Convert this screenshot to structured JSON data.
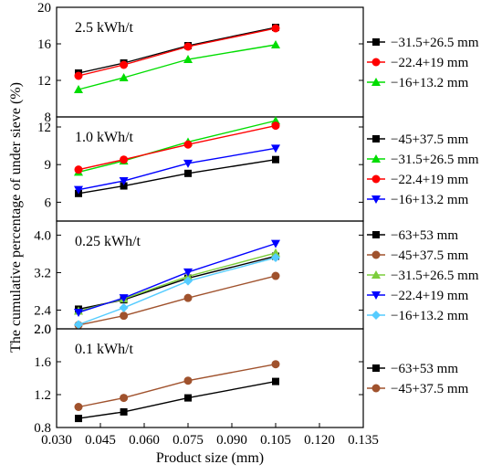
{
  "chart_data": {
    "type": "line",
    "xlabel": "Product size (mm)",
    "ylabel": "The cumulative percentage of under sieve (%)",
    "xlim": [
      0.03,
      0.135
    ],
    "x_ticks": [
      "0.030",
      "0.045",
      "0.060",
      "0.075",
      "0.090",
      "0.105",
      "0.120",
      "0.135"
    ],
    "x": [
      0.0375,
      0.053,
      0.075,
      0.105
    ],
    "panels": [
      {
        "label": "2.5 kWh/t",
        "ylim": [
          8,
          20
        ],
        "y_ticks": [
          "8",
          "12",
          "16",
          "20"
        ],
        "series": [
          {
            "name": "−31.5+26.5 mm",
            "color": "#000000",
            "marker": "square",
            "values": [
              12.8,
              13.9,
              15.8,
              17.8
            ]
          },
          {
            "name": "−22.4+19 mm",
            "color": "#ff0000",
            "marker": "circle",
            "values": [
              12.5,
              13.7,
              15.7,
              17.7
            ]
          },
          {
            "name": "−16+13.2 mm",
            "color": "#00dd00",
            "marker": "triangle-up",
            "values": [
              11.0,
              12.3,
              14.3,
              15.9
            ]
          }
        ]
      },
      {
        "label": "1.0 kWh/t",
        "ylim": [
          4.5,
          12.8
        ],
        "y_ticks": [
          "6",
          "9",
          "12"
        ],
        "series": [
          {
            "name": "−45+37.5 mm",
            "color": "#000000",
            "marker": "square",
            "values": [
              6.7,
              7.3,
              8.3,
              9.4
            ]
          },
          {
            "name": "−31.5+26.5 mm",
            "color": "#00dd00",
            "marker": "triangle-up",
            "values": [
              8.4,
              9.3,
              10.8,
              12.5
            ]
          },
          {
            "name": "−22.4+19 mm",
            "color": "#ff0000",
            "marker": "circle",
            "values": [
              8.6,
              9.4,
              10.6,
              12.1
            ]
          },
          {
            "name": "−16+13.2 mm",
            "color": "#0000ff",
            "marker": "triangle-down",
            "values": [
              7.0,
              7.7,
              9.1,
              10.3
            ]
          }
        ]
      },
      {
        "label": "0.25 kWh/t",
        "ylim": [
          2.0,
          4.3
        ],
        "y_ticks": [
          "2.0",
          "2.4",
          "3.2",
          "4.0"
        ],
        "series": [
          {
            "name": "−63+53 mm",
            "color": "#000000",
            "marker": "square",
            "values": [
              2.42,
              2.62,
              3.08,
              3.55
            ]
          },
          {
            "name": "−45+37.5 mm",
            "color": "#a0522d",
            "marker": "circle",
            "values": [
              2.08,
              2.28,
              2.66,
              3.13
            ]
          },
          {
            "name": "−31.5+26.5 mm",
            "color": "#7ccd3c",
            "marker": "triangle-up",
            "values": [
              2.38,
              2.64,
              3.12,
              3.62
            ]
          },
          {
            "name": "−22.4+19 mm",
            "color": "#0000ff",
            "marker": "triangle-down",
            "values": [
              2.35,
              2.66,
              3.21,
              3.82
            ]
          },
          {
            "name": "−16+13.2 mm",
            "color": "#55ccff",
            "marker": "diamond",
            "values": [
              2.09,
              2.45,
              3.02,
              3.52
            ]
          }
        ]
      },
      {
        "label": "0.1 kWh/t",
        "ylim": [
          0.8,
          2.0
        ],
        "y_ticks": [
          "0.8",
          "1.2",
          "1.6",
          "2.0"
        ],
        "series": [
          {
            "name": "−63+53 mm",
            "color": "#000000",
            "marker": "square",
            "values": [
              0.91,
              0.99,
              1.16,
              1.36
            ]
          },
          {
            "name": "−45+37.5 mm",
            "color": "#a0522d",
            "marker": "circle",
            "values": [
              1.05,
              1.16,
              1.37,
              1.57
            ]
          }
        ]
      }
    ]
  }
}
